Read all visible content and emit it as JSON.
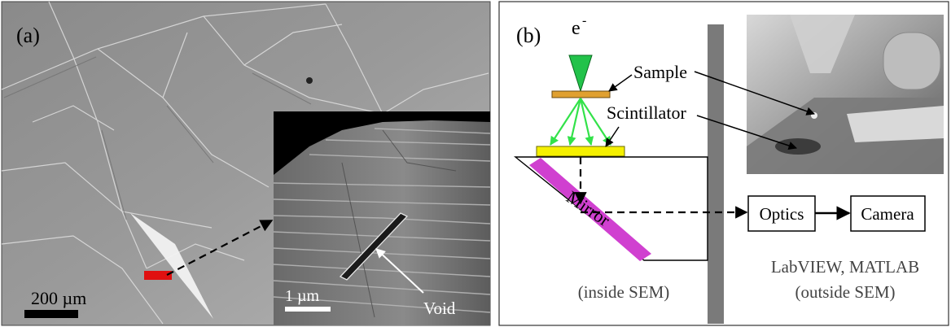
{
  "panel_a": {
    "label": "(a)",
    "scale_bar_main": "200 µm",
    "scale_bar_inset": "1 µm",
    "void_label": "Void",
    "colors": {
      "marker": "#e01010",
      "arrow": "#000000"
    }
  },
  "panel_b": {
    "label": "(b)",
    "beam_label": "e",
    "beam_superscript": "-",
    "sample_label": "Sample",
    "scintillator_label": "Scintillator",
    "mirror_label": "Mirror",
    "optics_label": "Optics",
    "camera_label": "Camera",
    "software_label": "LabVIEW,  MATLAB",
    "outside_label": "(outside SEM)",
    "inside_label": "(inside SEM)",
    "colors": {
      "beam": "#22c24a",
      "rays": "#33e24a",
      "sample": "#e0a030",
      "scintillator": "#f5f000",
      "mirror": "#d040d0",
      "wall": "#7a7a7a"
    }
  }
}
